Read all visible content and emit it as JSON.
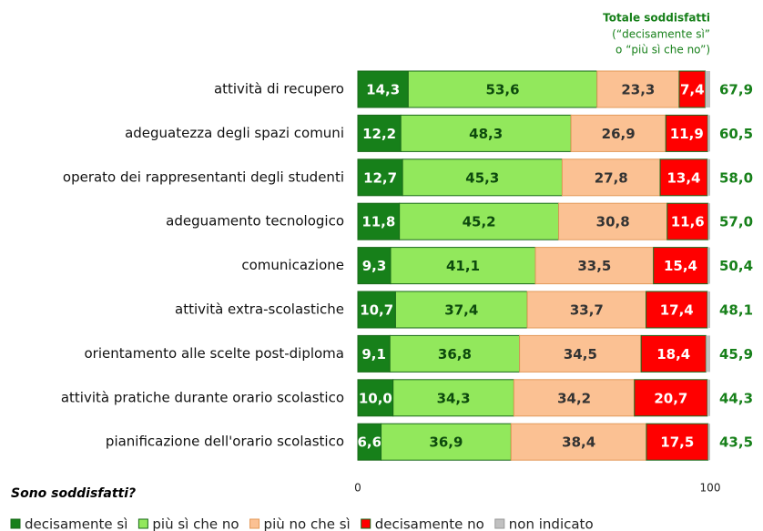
{
  "chart_data": {
    "type": "stacked-bar",
    "categories": [
      "attività di recupero",
      "adeguatezza degli spazi comuni",
      "operato dei rappresentanti degli studenti",
      "adeguamento tecnologico",
      "comunicazione",
      "attività extra-scolastiche",
      "orientamento alle scelte post-diploma",
      "attività pratiche durante orario scolastico",
      "pianificazione dell'orario scolastico"
    ],
    "series": [
      {
        "name": "decisamente sì",
        "color": "#17801a",
        "values": [
          14.3,
          12.2,
          12.7,
          11.8,
          9.3,
          10.7,
          9.1,
          10.0,
          6.6
        ],
        "value_labels": [
          "14,3",
          "12,2",
          "12,7",
          "11,8",
          "9,3",
          "10,7",
          "9,1",
          "10,0",
          "6,6"
        ]
      },
      {
        "name": "più sì che no",
        "color": "#92e85c",
        "values": [
          53.6,
          48.3,
          45.3,
          45.2,
          41.1,
          37.4,
          36.8,
          34.3,
          36.9
        ],
        "value_labels": [
          "53,6",
          "48,3",
          "45,3",
          "45,2",
          "41,1",
          "37,4",
          "36,8",
          "34,3",
          "36,9"
        ]
      },
      {
        "name": "più no che sì",
        "color": "#fbc193",
        "values": [
          23.3,
          26.9,
          27.8,
          30.8,
          33.5,
          33.7,
          34.5,
          34.2,
          38.4
        ],
        "value_labels": [
          "23,3",
          "26,9",
          "27,8",
          "30,8",
          "33,5",
          "33,7",
          "34,5",
          "34,2",
          "38,4"
        ]
      },
      {
        "name": "decisamente no",
        "color": "#ff0000",
        "values": [
          7.4,
          11.9,
          13.4,
          11.6,
          15.4,
          17.4,
          18.4,
          20.7,
          17.5
        ],
        "value_labels": [
          "7,4",
          "11,9",
          "13,4",
          "11,6",
          "15,4",
          "17,4",
          "18,4",
          "20,7",
          "17,5"
        ]
      },
      {
        "name": "non indicato",
        "color": "#c0c0c0",
        "values": [
          1.4,
          0.7,
          0.8,
          0.6,
          0.7,
          0.8,
          1.2,
          0.8,
          0.6
        ]
      }
    ],
    "totals": {
      "header": [
        "Totale soddisfatti",
        "(“decisamente sì”",
        "o “più sì che no”)"
      ],
      "values": [
        67.9,
        60.5,
        58.0,
        57.0,
        50.4,
        48.1,
        45.9,
        44.3,
        43.5
      ],
      "value_labels": [
        "67,9",
        "60,5",
        "58,0",
        "57,0",
        "50,4",
        "48,1",
        "45,9",
        "44,3",
        "43,5"
      ]
    },
    "annotation": "Sono soddisfatti?",
    "xlim": [
      0,
      100
    ],
    "xticks": [
      0,
      100
    ]
  }
}
